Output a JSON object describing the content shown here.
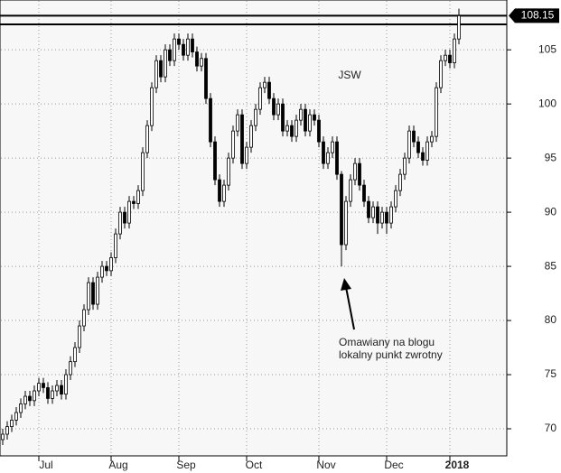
{
  "chart_data": {
    "type": "candlestick",
    "title": "JSW",
    "annotation": [
      "Omawiany na blogu",
      "lokalny punkt zwrotny"
    ],
    "categories": [
      null,
      null,
      null,
      null,
      null,
      null,
      null,
      null,
      "Jul",
      null,
      null,
      null,
      null,
      null,
      null,
      null,
      null,
      null,
      null,
      null,
      null,
      null,
      null,
      null,
      "Aug",
      null,
      null,
      null,
      null,
      null,
      null,
      null,
      null,
      null,
      null,
      null,
      null,
      null,
      null,
      "Sep",
      null,
      null,
      null,
      null,
      null,
      null,
      null,
      null,
      null,
      null,
      null,
      null,
      null,
      null,
      "Oct",
      null,
      null,
      null,
      null,
      null,
      null,
      null,
      null,
      null,
      null,
      null,
      null,
      null,
      null,
      null,
      "Nov",
      null,
      null,
      null,
      null,
      null,
      null,
      null,
      null,
      null,
      null,
      null,
      null,
      null,
      null,
      "Dec",
      null,
      null,
      null,
      null,
      null,
      null,
      null,
      null,
      null,
      null,
      null,
      null,
      null,
      "2018",
      null,
      null
    ],
    "open": [
      69.0,
      69.5,
      70.2,
      70.8,
      71.5,
      72.3,
      73.0,
      72.6,
      73.5,
      74.2,
      73.8,
      72.8,
      73.5,
      74.0,
      73.2,
      75.0,
      76.2,
      77.5,
      79.5,
      81.0,
      83.5,
      81.5,
      84.0,
      85.0,
      84.6,
      85.8,
      88.0,
      90.0,
      89.0,
      91.0,
      90.8,
      92.0,
      95.5,
      98.0,
      101.5,
      104.0,
      102.5,
      105.0,
      104.0,
      106.0,
      105.5,
      104.5,
      106.0,
      104.8,
      103.5,
      104.2,
      100.5,
      96.5,
      93.0,
      91.0,
      92.5,
      95.0,
      97.5,
      99.0,
      94.5,
      96.0,
      98.0,
      99.5,
      101.5,
      102.0,
      100.5,
      99.0,
      100.0,
      97.5,
      98.0,
      97.0,
      98.5,
      99.5,
      97.5,
      99.0,
      98.5,
      96.5,
      94.5,
      95.5,
      96.5,
      93.5,
      87.0,
      91.0,
      93.0,
      94.5,
      92.5,
      91.0,
      89.5,
      90.5,
      89.0,
      90.0,
      89.0,
      90.5,
      92.0,
      93.5,
      95.0,
      97.5,
      96.5,
      95.5,
      94.8,
      96.5,
      97.0,
      101.5,
      104.0,
      104.5,
      103.8,
      106.0
    ],
    "high": [
      70.0,
      70.7,
      71.3,
      72.0,
      72.8,
      73.5,
      73.5,
      74.0,
      74.7,
      74.7,
      74.3,
      74.0,
      74.5,
      74.5,
      75.5,
      76.7,
      78.0,
      80.0,
      81.5,
      84.0,
      84.0,
      84.5,
      85.5,
      85.5,
      86.3,
      88.5,
      90.5,
      90.5,
      91.5,
      91.5,
      92.5,
      96.0,
      98.5,
      102.0,
      104.5,
      104.5,
      105.5,
      105.5,
      106.5,
      106.5,
      106.0,
      106.5,
      106.5,
      105.3,
      104.7,
      104.7,
      101.0,
      97.0,
      93.5,
      93.0,
      95.5,
      98.0,
      99.5,
      99.5,
      96.5,
      98.5,
      100.0,
      102.0,
      102.5,
      102.5,
      101.0,
      100.5,
      100.5,
      98.5,
      98.5,
      99.0,
      100.0,
      100.0,
      99.5,
      99.5,
      99.0,
      97.0,
      96.0,
      97.0,
      97.0,
      93.8,
      91.5,
      93.5,
      95.0,
      95.0,
      93.0,
      91.5,
      91.0,
      91.0,
      90.5,
      90.5,
      91.0,
      92.5,
      94.0,
      95.5,
      98.0,
      98.0,
      97.0,
      96.0,
      97.0,
      97.5,
      102.0,
      104.5,
      105.0,
      105.0,
      106.5,
      108.8
    ],
    "low": [
      68.5,
      69.0,
      69.7,
      70.3,
      71.0,
      71.8,
      72.1,
      72.1,
      73.0,
      73.3,
      72.3,
      72.3,
      73.0,
      72.7,
      72.7,
      74.5,
      75.7,
      77.0,
      79.0,
      80.5,
      81.0,
      81.0,
      83.5,
      84.1,
      84.1,
      85.3,
      87.5,
      88.5,
      88.5,
      90.3,
      90.3,
      91.5,
      95.0,
      97.5,
      101.0,
      102.0,
      102.0,
      103.5,
      103.5,
      105.0,
      104.0,
      104.0,
      104.3,
      103.0,
      103.0,
      100.0,
      96.0,
      92.5,
      90.5,
      90.5,
      92.0,
      94.5,
      97.0,
      94.0,
      94.0,
      95.5,
      97.5,
      99.0,
      101.0,
      100.0,
      98.5,
      98.5,
      97.0,
      97.0,
      96.5,
      96.5,
      98.0,
      97.0,
      97.0,
      98.0,
      96.0,
      94.0,
      94.0,
      95.0,
      93.0,
      85.0,
      86.5,
      90.5,
      92.5,
      92.0,
      90.5,
      89.0,
      89.0,
      88.0,
      88.5,
      88.0,
      88.5,
      90.0,
      91.5,
      93.0,
      94.5,
      96.0,
      95.0,
      94.3,
      94.3,
      96.0,
      96.5,
      101.0,
      103.5,
      103.3,
      103.3,
      105.5
    ],
    "close": [
      69.5,
      70.2,
      70.8,
      71.5,
      72.3,
      73.0,
      72.6,
      73.5,
      74.2,
      73.8,
      72.8,
      73.5,
      74.0,
      73.2,
      75.0,
      76.2,
      77.5,
      79.5,
      81.0,
      83.5,
      81.5,
      84.0,
      85.0,
      84.6,
      85.8,
      88.0,
      90.0,
      89.0,
      91.0,
      90.8,
      92.0,
      95.5,
      98.0,
      101.5,
      104.0,
      102.5,
      105.0,
      104.0,
      106.0,
      105.5,
      104.5,
      106.0,
      104.8,
      103.5,
      104.2,
      100.5,
      96.5,
      93.0,
      91.0,
      92.5,
      95.0,
      97.5,
      99.0,
      94.5,
      96.0,
      98.0,
      99.5,
      101.5,
      102.0,
      100.5,
      99.0,
      100.0,
      97.5,
      98.0,
      97.0,
      98.5,
      99.5,
      97.5,
      99.0,
      98.5,
      96.5,
      94.5,
      95.5,
      96.5,
      93.5,
      87.0,
      91.0,
      93.0,
      94.5,
      92.5,
      91.0,
      89.5,
      90.5,
      89.0,
      90.0,
      89.0,
      90.5,
      92.0,
      93.5,
      95.0,
      97.5,
      96.5,
      95.5,
      94.8,
      96.5,
      97.0,
      101.5,
      104.0,
      104.5,
      103.8,
      106.0,
      108.15
    ],
    "hlines": [
      108.15,
      107.35
    ],
    "ylim": [
      67.5,
      109.6
    ],
    "yticks": [
      70,
      75,
      80,
      85,
      90,
      95,
      100,
      105
    ],
    "grid": true,
    "up_color": "#ffffff",
    "down_color": "#000000"
  }
}
